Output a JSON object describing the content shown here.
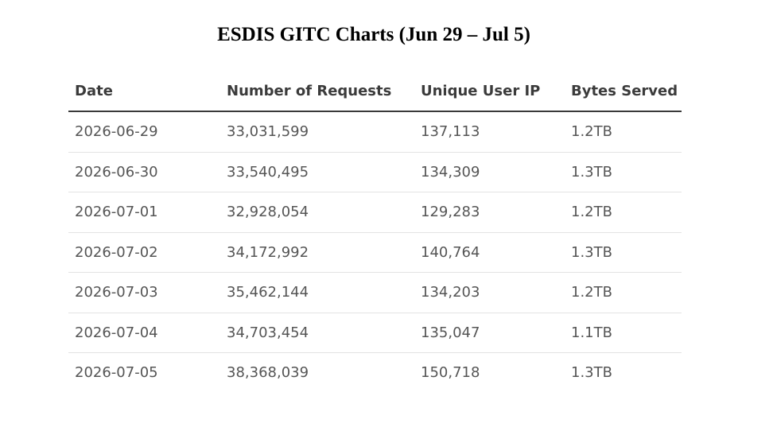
{
  "title": "ESDIS GITC Charts (Jun 29 – Jul 5)",
  "chart_data": {
    "type": "table",
    "title": "ESDIS GITC Charts (Jun 29 – Jul 5)",
    "columns": [
      "Date",
      "Number of Requests",
      "Unique User IP",
      "Bytes Served"
    ],
    "rows": [
      [
        "2026-06-29",
        "33,031,599",
        "137,113",
        "1.2TB"
      ],
      [
        "2026-06-30",
        "33,540,495",
        "134,309",
        "1.3TB"
      ],
      [
        "2026-07-01",
        "32,928,054",
        "129,283",
        "1.2TB"
      ],
      [
        "2026-07-02",
        "34,172,992",
        "140,764",
        "1.3TB"
      ],
      [
        "2026-07-03",
        "35,462,144",
        "134,203",
        "1.2TB"
      ],
      [
        "2026-07-04",
        "34,703,454",
        "135,047",
        "1.1TB"
      ],
      [
        "2026-07-05",
        "38,368,039",
        "150,718",
        "1.3TB"
      ]
    ]
  }
}
